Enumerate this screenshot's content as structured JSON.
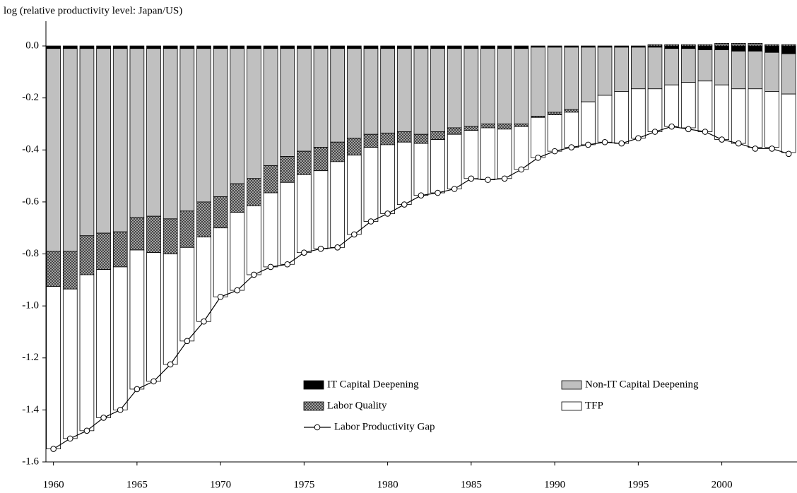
{
  "chart_data": {
    "type": "bar",
    "stacked": true,
    "ylabel": "log (relative productivity level: Japan/US)",
    "x": [
      1960,
      1961,
      1962,
      1963,
      1964,
      1965,
      1966,
      1967,
      1968,
      1969,
      1970,
      1971,
      1972,
      1973,
      1974,
      1975,
      1976,
      1977,
      1978,
      1979,
      1980,
      1981,
      1982,
      1983,
      1984,
      1985,
      1986,
      1987,
      1988,
      1989,
      1990,
      1991,
      1992,
      1993,
      1994,
      1995,
      1996,
      1997,
      1998,
      1999,
      2000,
      2001,
      2002,
      2003,
      2004
    ],
    "xlim": [
      1959.55,
      2004.5
    ],
    "xticks": [
      1960,
      1965,
      1970,
      1975,
      1980,
      1985,
      1990,
      1995,
      2000
    ],
    "ylim": [
      -1.6,
      0.03
    ],
    "yticks": [
      {
        "value": 0,
        "label": "0.0"
      },
      -0.2,
      -0.4,
      -0.6,
      -0.8,
      {
        "value": -1,
        "label": "-1.0"
      },
      -1.2,
      -1.4,
      -1.6
    ],
    "series": [
      {
        "name": "IT Capital Deepening",
        "color": "#000000",
        "values": [
          -0.01,
          -0.01,
          -0.01,
          -0.01,
          -0.01,
          -0.01,
          -0.01,
          -0.01,
          -0.01,
          -0.01,
          -0.01,
          -0.01,
          -0.01,
          -0.01,
          -0.01,
          -0.01,
          -0.01,
          -0.01,
          -0.01,
          -0.01,
          -0.01,
          -0.01,
          -0.01,
          -0.01,
          -0.01,
          -0.01,
          -0.01,
          -0.01,
          -0.01,
          -0.005,
          -0.005,
          -0.005,
          -0.005,
          -0.005,
          -0.005,
          -0.005,
          -0.005,
          -0.01,
          -0.01,
          -0.015,
          -0.015,
          -0.02,
          -0.02,
          -0.025,
          -0.03
        ]
      },
      {
        "name": "Non-IT Capital Deepening",
        "color": "#c0c0c0",
        "values": [
          -0.78,
          -0.78,
          -0.72,
          -0.71,
          -0.705,
          -0.65,
          -0.645,
          -0.655,
          -0.625,
          -0.59,
          -0.57,
          -0.52,
          -0.5,
          -0.45,
          -0.415,
          -0.395,
          -0.38,
          -0.36,
          -0.345,
          -0.33,
          -0.325,
          -0.32,
          -0.33,
          -0.32,
          -0.305,
          -0.3,
          -0.29,
          -0.29,
          -0.29,
          -0.265,
          -0.25,
          -0.24,
          -0.21,
          -0.185,
          -0.17,
          -0.16,
          -0.16,
          -0.14,
          -0.13,
          -0.12,
          -0.135,
          -0.145,
          -0.145,
          -0.15,
          -0.155
        ]
      },
      {
        "name": "Labor Quality",
        "color": "#808080",
        "pattern": "crosshatch",
        "values": [
          -0.135,
          -0.145,
          -0.15,
          -0.14,
          -0.135,
          -0.125,
          -0.14,
          -0.135,
          -0.14,
          -0.135,
          -0.12,
          -0.11,
          -0.105,
          -0.105,
          -0.1,
          -0.09,
          -0.09,
          -0.075,
          -0.065,
          -0.05,
          -0.045,
          -0.04,
          -0.035,
          -0.03,
          -0.025,
          -0.015,
          -0.015,
          -0.02,
          -0.01,
          -0.005,
          -0.01,
          -0.01,
          0,
          0,
          0,
          0,
          0.005,
          0.005,
          0.005,
          0.005,
          0.01,
          0.01,
          0.01,
          0.005,
          0.005
        ]
      },
      {
        "name": "TFP",
        "color": "#ffffff",
        "values": [
          -0.625,
          -0.575,
          -0.6,
          -0.57,
          -0.55,
          -0.535,
          -0.495,
          -0.425,
          -0.36,
          -0.325,
          -0.265,
          -0.3,
          -0.265,
          -0.285,
          -0.315,
          -0.3,
          -0.3,
          -0.33,
          -0.305,
          -0.285,
          -0.265,
          -0.24,
          -0.2,
          -0.205,
          -0.21,
          -0.185,
          -0.2,
          -0.19,
          -0.165,
          -0.155,
          -0.14,
          -0.135,
          -0.165,
          -0.18,
          -0.2,
          -0.19,
          -0.165,
          -0.16,
          -0.175,
          -0.195,
          -0.21,
          -0.21,
          -0.225,
          -0.215,
          -0.225
        ]
      },
      {
        "name": "Labor Productivity Gap",
        "type": "line",
        "marker": "circle",
        "color": "#000000",
        "values": [
          -1.55,
          -1.51,
          -1.48,
          -1.43,
          -1.4,
          -1.32,
          -1.29,
          -1.225,
          -1.135,
          -1.06,
          -0.965,
          -0.94,
          -0.88,
          -0.85,
          -0.84,
          -0.795,
          -0.78,
          -0.775,
          -0.725,
          -0.675,
          -0.645,
          -0.61,
          -0.575,
          -0.565,
          -0.55,
          -0.51,
          -0.515,
          -0.51,
          -0.475,
          -0.43,
          -0.405,
          -0.39,
          -0.38,
          -0.37,
          -0.375,
          -0.355,
          -0.33,
          -0.31,
          -0.32,
          -0.33,
          -0.36,
          -0.375,
          -0.395,
          -0.395,
          -0.415
        ]
      }
    ]
  }
}
